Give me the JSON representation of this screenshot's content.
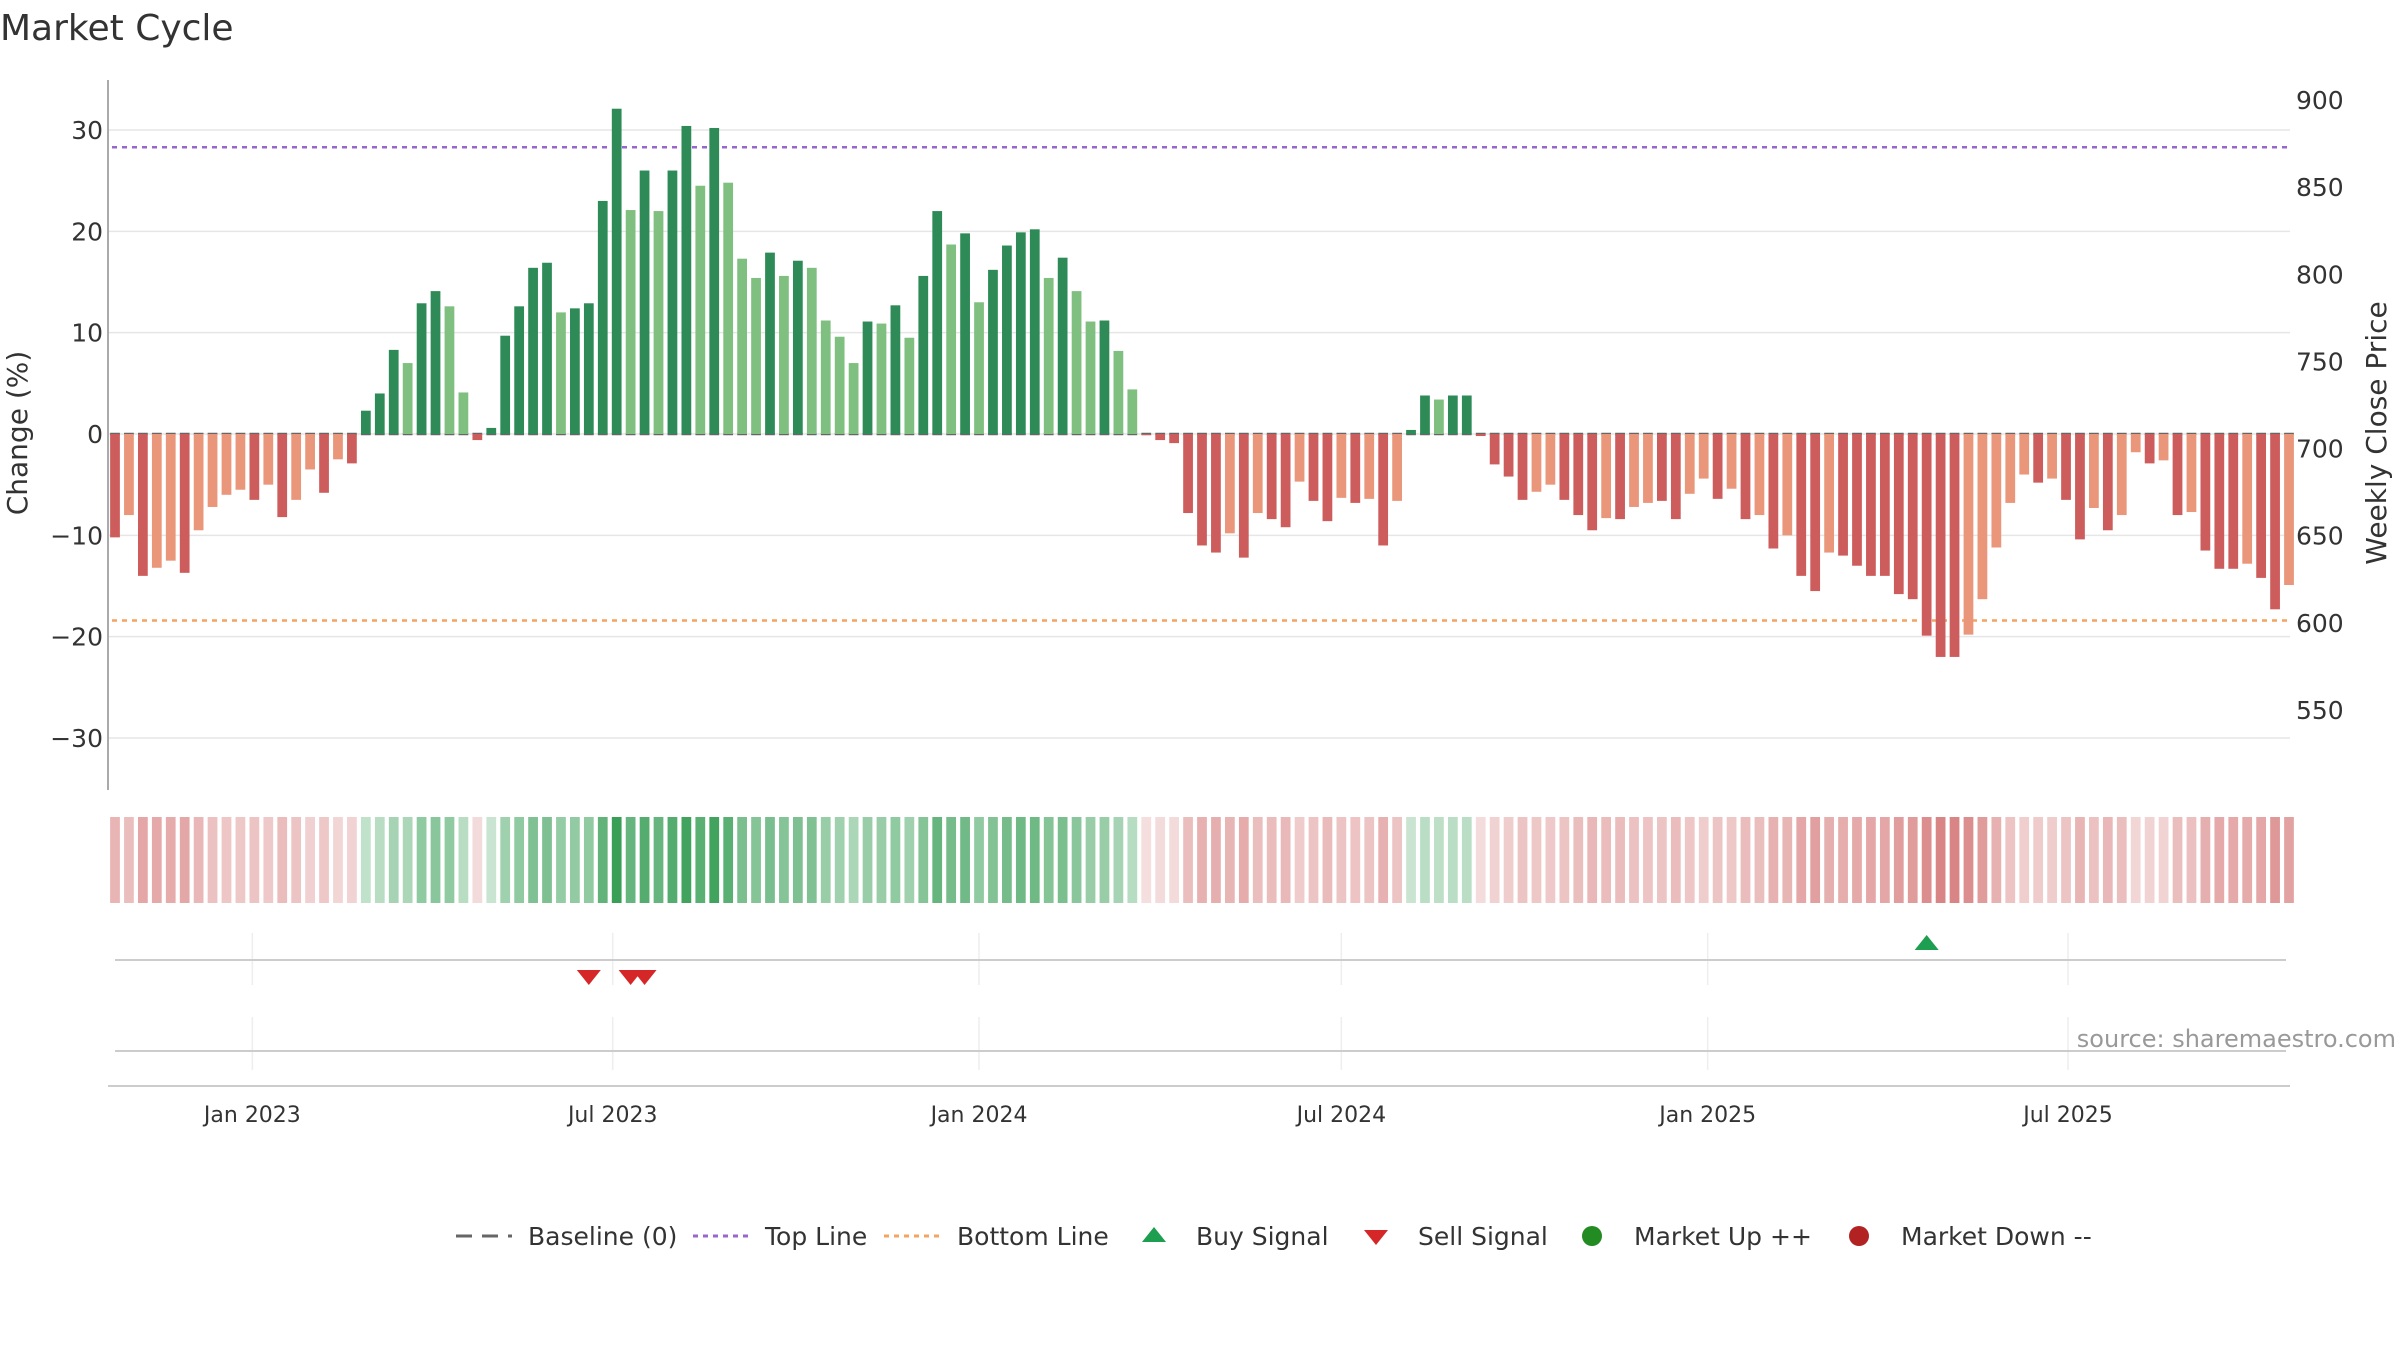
{
  "chart_data": {
    "type": "bar",
    "title": "Market Cycle",
    "ylabel": "Change (%)",
    "y2label": "Weekly Close Price",
    "ylim": [
      -35,
      35
    ],
    "y2lim": [
      520,
      905
    ],
    "yticks": [
      -30,
      -20,
      -10,
      0,
      10,
      20,
      30
    ],
    "y2ticks": [
      550,
      600,
      650,
      700,
      750,
      800,
      850,
      900
    ],
    "x_start_date": "2022-10-24",
    "x_end_date": "2025-09-29",
    "x_ticks": [
      {
        "date": "2023-01-01",
        "label": "Jan 2023"
      },
      {
        "date": "2023-07-01",
        "label": "Jul 2023"
      },
      {
        "date": "2024-01-01",
        "label": "Jan 2024"
      },
      {
        "date": "2024-07-01",
        "label": "Jul 2024"
      },
      {
        "date": "2025-01-01",
        "label": "Jan 2025"
      },
      {
        "date": "2025-07-01",
        "label": "Jul 2025"
      }
    ],
    "top_line": 28.3,
    "bottom_line": -18.4,
    "grid": true,
    "legend_position": "bottom",
    "series_colors": {
      "up_dark": "#2e8b57",
      "up_light": "#7fbf7f",
      "down_dark": "#cd5c5c",
      "down_light": "#e9967a",
      "top_line": "#9966cc",
      "bottom_line": "#f4a460",
      "buy": "#1e9e50",
      "sell": "#d62728",
      "market_up": "#228b22",
      "market_down": "#b22222"
    },
    "weeks": [
      {
        "date": "2022-10-24",
        "change": -10.2,
        "shade": "dark"
      },
      {
        "date": "2022-10-31",
        "change": -8.0,
        "shade": "light"
      },
      {
        "date": "2022-11-07",
        "change": -14.0,
        "shade": "dark"
      },
      {
        "date": "2022-11-14",
        "change": -13.2,
        "shade": "light"
      },
      {
        "date": "2022-11-21",
        "change": -12.5,
        "shade": "light"
      },
      {
        "date": "2022-11-28",
        "change": -13.7,
        "shade": "dark"
      },
      {
        "date": "2022-12-05",
        "change": -9.5,
        "shade": "light"
      },
      {
        "date": "2022-12-12",
        "change": -7.2,
        "shade": "light"
      },
      {
        "date": "2022-12-19",
        "change": -6.0,
        "shade": "light"
      },
      {
        "date": "2022-12-26",
        "change": -5.5,
        "shade": "light"
      },
      {
        "date": "2023-01-02",
        "change": -6.5,
        "shade": "dark"
      },
      {
        "date": "2023-01-09",
        "change": -5.0,
        "shade": "light"
      },
      {
        "date": "2023-01-16",
        "change": -8.2,
        "shade": "dark"
      },
      {
        "date": "2023-01-23",
        "change": -6.5,
        "shade": "light"
      },
      {
        "date": "2023-01-30",
        "change": -3.5,
        "shade": "light"
      },
      {
        "date": "2023-02-06",
        "change": -5.8,
        "shade": "dark"
      },
      {
        "date": "2023-02-13",
        "change": -2.5,
        "shade": "light"
      },
      {
        "date": "2023-02-20",
        "change": -2.9,
        "shade": "dark"
      },
      {
        "date": "2023-02-27",
        "change": 2.3,
        "shade": "dark"
      },
      {
        "date": "2023-03-06",
        "change": 4.0,
        "shade": "dark"
      },
      {
        "date": "2023-03-13",
        "change": 8.3,
        "shade": "dark"
      },
      {
        "date": "2023-03-20",
        "change": 7.0,
        "shade": "light"
      },
      {
        "date": "2023-03-27",
        "change": 12.9,
        "shade": "dark"
      },
      {
        "date": "2023-04-03",
        "change": 14.1,
        "shade": "dark"
      },
      {
        "date": "2023-04-10",
        "change": 12.6,
        "shade": "light"
      },
      {
        "date": "2023-04-17",
        "change": 4.1,
        "shade": "light"
      },
      {
        "date": "2023-04-24",
        "change": -0.6,
        "shade": "dark"
      },
      {
        "date": "2023-05-01",
        "change": 0.6,
        "shade": "dark"
      },
      {
        "date": "2023-05-08",
        "change": 9.7,
        "shade": "dark"
      },
      {
        "date": "2023-05-15",
        "change": 12.6,
        "shade": "dark"
      },
      {
        "date": "2023-05-22",
        "change": 16.4,
        "shade": "dark"
      },
      {
        "date": "2023-05-29",
        "change": 16.9,
        "shade": "dark"
      },
      {
        "date": "2023-06-05",
        "change": 12.0,
        "shade": "light"
      },
      {
        "date": "2023-06-12",
        "change": 12.4,
        "shade": "dark"
      },
      {
        "date": "2023-06-19",
        "change": 12.9,
        "shade": "dark"
      },
      {
        "date": "2023-06-26",
        "change": 23.0,
        "shade": "dark"
      },
      {
        "date": "2023-07-03",
        "change": 32.1,
        "shade": "dark"
      },
      {
        "date": "2023-07-10",
        "change": 22.1,
        "shade": "light"
      },
      {
        "date": "2023-07-17",
        "change": 26.0,
        "shade": "dark"
      },
      {
        "date": "2023-07-24",
        "change": 22.0,
        "shade": "light"
      },
      {
        "date": "2023-07-31",
        "change": 26.0,
        "shade": "dark"
      },
      {
        "date": "2023-08-07",
        "change": 30.4,
        "shade": "dark"
      },
      {
        "date": "2023-08-14",
        "change": 24.5,
        "shade": "light"
      },
      {
        "date": "2023-08-21",
        "change": 30.2,
        "shade": "dark"
      },
      {
        "date": "2023-08-28",
        "change": 24.8,
        "shade": "light"
      },
      {
        "date": "2023-09-04",
        "change": 17.3,
        "shade": "light"
      },
      {
        "date": "2023-09-11",
        "change": 15.4,
        "shade": "light"
      },
      {
        "date": "2023-09-18",
        "change": 17.9,
        "shade": "dark"
      },
      {
        "date": "2023-09-25",
        "change": 15.6,
        "shade": "light"
      },
      {
        "date": "2023-10-02",
        "change": 17.1,
        "shade": "dark"
      },
      {
        "date": "2023-10-09",
        "change": 16.4,
        "shade": "light"
      },
      {
        "date": "2023-10-16",
        "change": 11.2,
        "shade": "light"
      },
      {
        "date": "2023-10-23",
        "change": 9.6,
        "shade": "light"
      },
      {
        "date": "2023-10-30",
        "change": 7.0,
        "shade": "light"
      },
      {
        "date": "2023-11-06",
        "change": 11.1,
        "shade": "dark"
      },
      {
        "date": "2023-11-13",
        "change": 10.9,
        "shade": "light"
      },
      {
        "date": "2023-11-20",
        "change": 12.7,
        "shade": "dark"
      },
      {
        "date": "2023-11-27",
        "change": 9.5,
        "shade": "light"
      },
      {
        "date": "2023-12-04",
        "change": 15.6,
        "shade": "dark"
      },
      {
        "date": "2023-12-11",
        "change": 22.0,
        "shade": "dark"
      },
      {
        "date": "2023-12-18",
        "change": 18.7,
        "shade": "light"
      },
      {
        "date": "2023-12-25",
        "change": 19.8,
        "shade": "dark"
      },
      {
        "date": "2024-01-01",
        "change": 13.0,
        "shade": "light"
      },
      {
        "date": "2024-01-08",
        "change": 16.2,
        "shade": "dark"
      },
      {
        "date": "2024-01-15",
        "change": 18.6,
        "shade": "dark"
      },
      {
        "date": "2024-01-22",
        "change": 19.9,
        "shade": "dark"
      },
      {
        "date": "2024-01-29",
        "change": 20.2,
        "shade": "dark"
      },
      {
        "date": "2024-02-05",
        "change": 15.4,
        "shade": "light"
      },
      {
        "date": "2024-02-12",
        "change": 17.4,
        "shade": "dark"
      },
      {
        "date": "2024-02-19",
        "change": 14.1,
        "shade": "light"
      },
      {
        "date": "2024-02-26",
        "change": 11.1,
        "shade": "light"
      },
      {
        "date": "2024-03-04",
        "change": 11.2,
        "shade": "dark"
      },
      {
        "date": "2024-03-11",
        "change": 8.2,
        "shade": "light"
      },
      {
        "date": "2024-03-18",
        "change": 4.4,
        "shade": "light"
      },
      {
        "date": "2024-03-25",
        "change": -0.1,
        "shade": "dark"
      },
      {
        "date": "2024-04-01",
        "change": -0.6,
        "shade": "dark"
      },
      {
        "date": "2024-04-08",
        "change": -0.9,
        "shade": "dark"
      },
      {
        "date": "2024-04-15",
        "change": -7.8,
        "shade": "dark"
      },
      {
        "date": "2024-04-22",
        "change": -11.0,
        "shade": "dark"
      },
      {
        "date": "2024-04-29",
        "change": -11.7,
        "shade": "dark"
      },
      {
        "date": "2024-05-06",
        "change": -9.8,
        "shade": "light"
      },
      {
        "date": "2024-05-13",
        "change": -12.2,
        "shade": "dark"
      },
      {
        "date": "2024-05-20",
        "change": -7.8,
        "shade": "light"
      },
      {
        "date": "2024-05-27",
        "change": -8.4,
        "shade": "dark"
      },
      {
        "date": "2024-06-03",
        "change": -9.2,
        "shade": "dark"
      },
      {
        "date": "2024-06-10",
        "change": -4.7,
        "shade": "light"
      },
      {
        "date": "2024-06-17",
        "change": -6.6,
        "shade": "dark"
      },
      {
        "date": "2024-06-24",
        "change": -8.6,
        "shade": "dark"
      },
      {
        "date": "2024-07-01",
        "change": -6.3,
        "shade": "light"
      },
      {
        "date": "2024-07-08",
        "change": -6.8,
        "shade": "dark"
      },
      {
        "date": "2024-07-15",
        "change": -6.4,
        "shade": "light"
      },
      {
        "date": "2024-07-22",
        "change": -11.0,
        "shade": "dark"
      },
      {
        "date": "2024-07-29",
        "change": -6.6,
        "shade": "light"
      },
      {
        "date": "2024-08-05",
        "change": 0.4,
        "shade": "dark"
      },
      {
        "date": "2024-08-12",
        "change": 3.8,
        "shade": "dark"
      },
      {
        "date": "2024-08-19",
        "change": 3.4,
        "shade": "light"
      },
      {
        "date": "2024-08-26",
        "change": 3.8,
        "shade": "dark"
      },
      {
        "date": "2024-09-02",
        "change": 3.8,
        "shade": "dark"
      },
      {
        "date": "2024-09-09",
        "change": -0.2,
        "shade": "dark"
      },
      {
        "date": "2024-09-16",
        "change": -3.0,
        "shade": "dark"
      },
      {
        "date": "2024-09-23",
        "change": -4.2,
        "shade": "dark"
      },
      {
        "date": "2024-09-30",
        "change": -6.5,
        "shade": "dark"
      },
      {
        "date": "2024-10-07",
        "change": -5.7,
        "shade": "light"
      },
      {
        "date": "2024-10-14",
        "change": -5.0,
        "shade": "light"
      },
      {
        "date": "2024-10-21",
        "change": -6.5,
        "shade": "dark"
      },
      {
        "date": "2024-10-28",
        "change": -8.0,
        "shade": "dark"
      },
      {
        "date": "2024-11-04",
        "change": -9.5,
        "shade": "dark"
      },
      {
        "date": "2024-11-11",
        "change": -8.3,
        "shade": "light"
      },
      {
        "date": "2024-11-18",
        "change": -8.4,
        "shade": "dark"
      },
      {
        "date": "2024-11-25",
        "change": -7.2,
        "shade": "light"
      },
      {
        "date": "2024-12-02",
        "change": -6.8,
        "shade": "light"
      },
      {
        "date": "2024-12-09",
        "change": -6.6,
        "shade": "dark"
      },
      {
        "date": "2024-12-16",
        "change": -8.4,
        "shade": "dark"
      },
      {
        "date": "2024-12-23",
        "change": -5.9,
        "shade": "light"
      },
      {
        "date": "2024-12-30",
        "change": -4.4,
        "shade": "light"
      },
      {
        "date": "2025-01-06",
        "change": -6.4,
        "shade": "dark"
      },
      {
        "date": "2025-01-13",
        "change": -5.4,
        "shade": "light"
      },
      {
        "date": "2025-01-20",
        "change": -8.4,
        "shade": "dark"
      },
      {
        "date": "2025-01-27",
        "change": -8.0,
        "shade": "light"
      },
      {
        "date": "2025-02-03",
        "change": -11.3,
        "shade": "dark"
      },
      {
        "date": "2025-02-10",
        "change": -10.0,
        "shade": "light"
      },
      {
        "date": "2025-02-17",
        "change": -14.0,
        "shade": "dark"
      },
      {
        "date": "2025-02-24",
        "change": -15.5,
        "shade": "dark"
      },
      {
        "date": "2025-03-03",
        "change": -11.7,
        "shade": "light"
      },
      {
        "date": "2025-03-10",
        "change": -12.0,
        "shade": "dark"
      },
      {
        "date": "2025-03-17",
        "change": -13.0,
        "shade": "dark"
      },
      {
        "date": "2025-03-24",
        "change": -14.0,
        "shade": "dark"
      },
      {
        "date": "2025-03-31",
        "change": -14.0,
        "shade": "dark"
      },
      {
        "date": "2025-04-07",
        "change": -15.8,
        "shade": "dark"
      },
      {
        "date": "2025-04-14",
        "change": -16.3,
        "shade": "dark"
      },
      {
        "date": "2025-04-21",
        "change": -19.9,
        "shade": "dark"
      },
      {
        "date": "2025-04-28",
        "change": -22.0,
        "shade": "dark"
      },
      {
        "date": "2025-05-05",
        "change": -22.0,
        "shade": "dark"
      },
      {
        "date": "2025-05-12",
        "change": -19.8,
        "shade": "light"
      },
      {
        "date": "2025-05-19",
        "change": -16.3,
        "shade": "light"
      },
      {
        "date": "2025-05-26",
        "change": -11.2,
        "shade": "light"
      },
      {
        "date": "2025-06-02",
        "change": -6.8,
        "shade": "light"
      },
      {
        "date": "2025-06-09",
        "change": -4.0,
        "shade": "light"
      },
      {
        "date": "2025-06-16",
        "change": -4.8,
        "shade": "dark"
      },
      {
        "date": "2025-06-23",
        "change": -4.4,
        "shade": "light"
      },
      {
        "date": "2025-06-30",
        "change": -6.5,
        "shade": "dark"
      },
      {
        "date": "2025-07-07",
        "change": -10.4,
        "shade": "dark"
      },
      {
        "date": "2025-07-14",
        "change": -7.3,
        "shade": "light"
      },
      {
        "date": "2025-07-21",
        "change": -9.5,
        "shade": "dark"
      },
      {
        "date": "2025-07-28",
        "change": -8.0,
        "shade": "light"
      },
      {
        "date": "2025-08-04",
        "change": -1.8,
        "shade": "light"
      },
      {
        "date": "2025-08-11",
        "change": -2.9,
        "shade": "dark"
      },
      {
        "date": "2025-08-18",
        "change": -2.6,
        "shade": "light"
      },
      {
        "date": "2025-08-25",
        "change": -8.0,
        "shade": "dark"
      },
      {
        "date": "2025-09-01",
        "change": -7.7,
        "shade": "light"
      },
      {
        "date": "2025-09-08",
        "change": -11.5,
        "shade": "dark"
      },
      {
        "date": "2025-09-15",
        "change": -13.3,
        "shade": "dark"
      },
      {
        "date": "2025-09-22",
        "change": -13.3,
        "shade": "dark"
      },
      {
        "date": "2025-09-29",
        "change": -12.8,
        "shade": "light"
      },
      {
        "date": "2025-10-06",
        "change": -14.2,
        "shade": "dark"
      },
      {
        "date": "2025-10-13",
        "change": -17.3,
        "shade": "dark"
      },
      {
        "date": "2025-10-20",
        "change": -14.9,
        "shade": "light"
      }
    ],
    "signals": [
      {
        "type": "sell",
        "date": "2023-06-19"
      },
      {
        "date": "2023-07-10",
        "type": "sell"
      },
      {
        "date": "2023-07-17",
        "type": "sell"
      },
      {
        "date": "2025-04-21",
        "type": "buy"
      }
    ]
  },
  "source_text": "source: sharemaestro.com",
  "legend": [
    {
      "key": "baseline",
      "label": "Baseline (0)"
    },
    {
      "key": "top",
      "label": "Top Line"
    },
    {
      "key": "bottom",
      "label": "Bottom Line"
    },
    {
      "key": "buy",
      "label": "Buy Signal"
    },
    {
      "key": "sell",
      "label": "Sell Signal"
    },
    {
      "key": "up",
      "label": "Market Up ++"
    },
    {
      "key": "down",
      "label": "Market Down --"
    }
  ]
}
